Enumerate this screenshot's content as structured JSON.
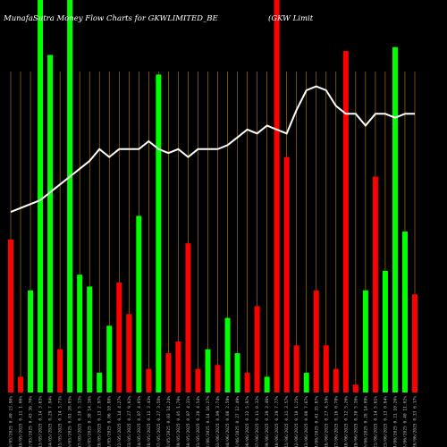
{
  "chart_data": {
    "type": "bar",
    "title_left": "MunafaSutra  Money Flow  Charts for GKWLIMITED_BE",
    "title_right": "(GKW Limit",
    "colors": {
      "background": "#000000",
      "gridline": "#b8860b",
      "inflow": "#00ff00",
      "outflow": "#ff0000",
      "line": "#ffffff",
      "tick": "#bbbbbb"
    },
    "ylim": [
      0,
      100
    ],
    "categories": [
      "09/05/2025 0.49 23.98%",
      "10/05/2025 0.11 1.66%",
      "12/05/2025 0.43 36.70%",
      "13/05/2025 0.14 3.63%",
      "14/05/2025 0.29 7.84%",
      "15/05/2025 0.14 3.73%",
      "16/05/2025 0.81 28.05%",
      "17/05/2025 0.20 5.13%",
      "19/05/2025 0.38 14.16%",
      "20/05/2025 0.13 2.97%",
      "21/05/2025 0.06 10.88%",
      "22/05/2025 0.14 4.27%",
      "23/05/2025 0.27 9.02%",
      "24/05/2025 0.07 4.05%",
      "26/05/2025 0.11 3.43%",
      "27/05/2025 0.27 3.58%",
      "28/05/2025 0.03 14.24%",
      "29/05/2025 0.05 1.70%",
      "30/05/2025 0.07 4.31%",
      "31/05/2025 0.20 4.54%",
      "02/06/2025 0.14 16.27%",
      "03/06/2025 0.09 3.74%",
      "04/06/2025 0.08 2.59%",
      "05/06/2025 0.27 12.49%",
      "06/06/2025 0.32 5.97%",
      "07/06/2025 0.11 0.32%",
      "09/06/2025 0.39 3.46%",
      "10/06/2025 0.29 7.77%",
      "11/06/2025 0.31 3.57%",
      "12/06/2025 0.10 1.25%",
      "13/06/2025 0.08 7.67%",
      "14/06/2025 0.41 35.87%",
      "16/06/2025 0.27 4.59%",
      "17/06/2025 0.16 0.78%",
      "18/06/2025 0.12 5.26%",
      "19/06/2025 0.30 5.16%",
      "20/06/2025 0.28 14.09%",
      "21/06/2025 0.14 5.61%",
      "23/06/2025 0.13 0.84%",
      "24/06/2025 0.21 10.26%",
      "25/06/2025 0.40 11.02%",
      "26/06/2025 0.33 6.17%"
    ],
    "flow": [
      "out",
      "out",
      "in",
      "in",
      "in",
      "out",
      "in",
      "in",
      "in",
      "in",
      "in",
      "out",
      "out",
      "in",
      "out",
      "in",
      "out",
      "out",
      "out",
      "out",
      "in",
      "out",
      "in",
      "in",
      "out",
      "out",
      "in",
      "out",
      "out",
      "out",
      "in",
      "out",
      "out",
      "out",
      "out",
      "out",
      "in",
      "out",
      "in",
      "in",
      "in",
      "out"
    ],
    "values": [
      39,
      4,
      26,
      100,
      86,
      11,
      100,
      30,
      27,
      5,
      17,
      28,
      20,
      45,
      6,
      81,
      10,
      13,
      38,
      6,
      11,
      7,
      19,
      10,
      5,
      22,
      4,
      100,
      60,
      12,
      5,
      26,
      12,
      6,
      87,
      2,
      26,
      55,
      31,
      88,
      41,
      25
    ],
    "line_values": [
      46,
      47,
      48,
      49,
      51,
      53,
      55,
      57,
      59,
      62,
      60,
      62,
      62,
      62,
      64,
      62,
      61,
      62,
      60,
      62,
      62,
      62,
      63,
      65,
      67,
      66,
      68,
      67,
      66,
      72,
      77,
      78,
      77,
      73,
      71,
      71,
      68,
      71,
      71,
      70,
      71,
      71
    ]
  }
}
